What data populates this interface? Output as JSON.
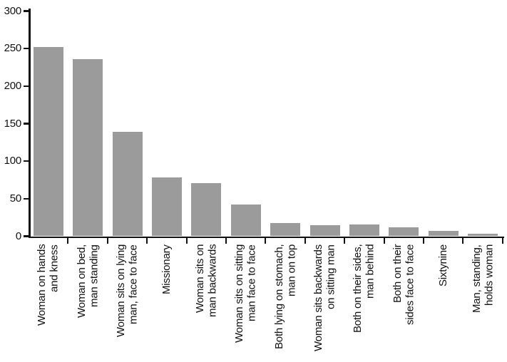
{
  "chart_data": {
    "type": "bar",
    "title": "",
    "xlabel": "",
    "ylabel": "",
    "categories": [
      "Woman on hands\nand kness",
      "Woman on bed,\nman standing",
      "Woman sits on lying\nman, face to face",
      "Missionary",
      "Woman sits on\nman backwards",
      "Woman sits on sitting\nman face to face",
      "Both lying on stomach,\nman on top",
      "Woman sits backwards\non sitting man",
      "Both on their sides,\nman behind",
      "Both on their\nsides face to face",
      "Sixtynine",
      "Man, standing,\nholds woman"
    ],
    "values": [
      252,
      236,
      139,
      78,
      71,
      42,
      18,
      15,
      16,
      12,
      7,
      3
    ],
    "ylim": [
      0,
      300
    ],
    "yticks": [
      0,
      50,
      100,
      150,
      200,
      250,
      300
    ],
    "grid": false,
    "legend_position": "none",
    "bar_color": "#9b9b9b",
    "axis_color": "#111111",
    "text_color": "#111111",
    "x_tick_style": "ticks-at-category-boundaries",
    "x_label_rotation_deg": 90
  }
}
